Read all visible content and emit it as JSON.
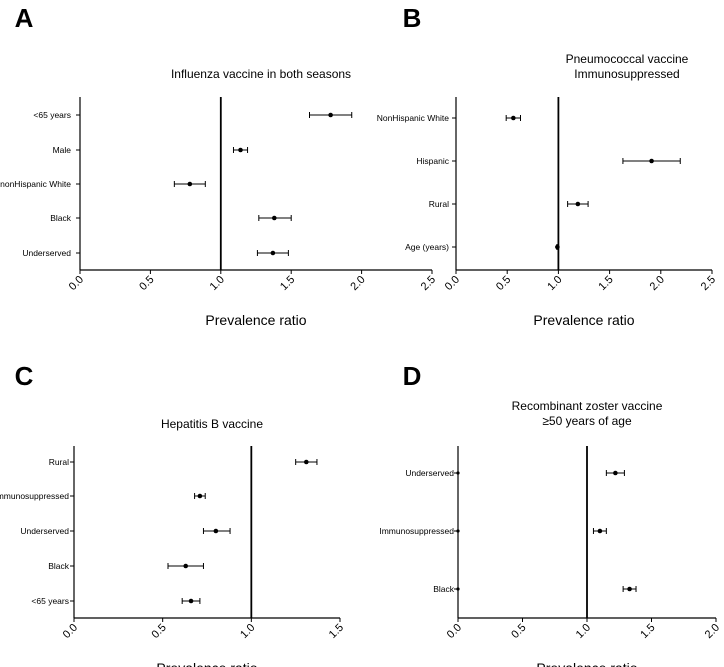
{
  "chart_data": [
    {
      "type": "forest",
      "panel": "A",
      "title": [
        "Influenza vaccine in both seasons"
      ],
      "xlabel": "Prevalence ratio",
      "xlim": [
        0,
        2.5
      ],
      "xticks": [
        "0.0",
        "0.5",
        "1.0",
        "1.5",
        "2.0",
        "2.5"
      ],
      "reference_line": 1.0,
      "rows": [
        {
          "label": "<65 years",
          "estimate": 1.78,
          "lower": 1.63,
          "upper": 1.93
        },
        {
          "label": "Male",
          "estimate": 1.14,
          "lower": 1.09,
          "upper": 1.19
        },
        {
          "label": "nonHispanic White",
          "estimate": 0.78,
          "lower": 0.67,
          "upper": 0.89
        },
        {
          "label": "Black",
          "estimate": 1.38,
          "lower": 1.27,
          "upper": 1.5
        },
        {
          "label": "Underserved",
          "estimate": 1.37,
          "lower": 1.26,
          "upper": 1.48
        }
      ]
    },
    {
      "type": "forest",
      "panel": "B",
      "title": [
        "Pneumococcal vaccine",
        "Immunosuppressed"
      ],
      "xlabel": "Prevalence ratio",
      "xlim": [
        0,
        2.5
      ],
      "xticks": [
        "0.0",
        "0.5",
        "1.0",
        "1.5",
        "2.0",
        "2.5"
      ],
      "reference_line": 1.0,
      "rows": [
        {
          "label": "NonHispanic White",
          "estimate": 0.56,
          "lower": 0.49,
          "upper": 0.63
        },
        {
          "label": "Hispanic",
          "estimate": 1.91,
          "lower": 1.63,
          "upper": 2.19
        },
        {
          "label": "Rural",
          "estimate": 1.19,
          "lower": 1.09,
          "upper": 1.29
        },
        {
          "label": "Age (years)",
          "estimate": 0.99,
          "lower": 0.985,
          "upper": 0.995
        }
      ]
    },
    {
      "type": "forest",
      "panel": "C",
      "title": [
        "Hepatitis B vaccine"
      ],
      "xlabel": "Prevalence ratio",
      "xlim": [
        0,
        1.5
      ],
      "xticks": [
        "0.0",
        "0.5",
        "1.0",
        "1.5"
      ],
      "reference_line": 1.0,
      "rows": [
        {
          "label": "Rural",
          "estimate": 1.31,
          "lower": 1.25,
          "upper": 1.37
        },
        {
          "label": "Immunosuppressed",
          "estimate": 0.71,
          "lower": 0.68,
          "upper": 0.74
        },
        {
          "label": "Underserved",
          "estimate": 0.8,
          "lower": 0.73,
          "upper": 0.88
        },
        {
          "label": "Black",
          "estimate": 0.63,
          "lower": 0.53,
          "upper": 0.73
        },
        {
          "label": "<65 years",
          "estimate": 0.66,
          "lower": 0.61,
          "upper": 0.71
        }
      ]
    },
    {
      "type": "forest",
      "panel": "D",
      "title": [
        "Recombinant zoster vaccine",
        "≥50 years of age"
      ],
      "xlabel": "Prevalence ratio",
      "xlim": [
        0,
        2.0
      ],
      "xticks": [
        "0.0",
        "0.5",
        "1.0",
        "1.5",
        "2.0"
      ],
      "reference_line": 1.0,
      "rows": [
        {
          "label": "Underserved",
          "estimate": 1.22,
          "lower": 1.15,
          "upper": 1.29
        },
        {
          "label": "Immunosuppressed",
          "estimate": 1.1,
          "lower": 1.05,
          "upper": 1.15
        },
        {
          "label": "Black",
          "estimate": 1.33,
          "lower": 1.28,
          "upper": 1.38
        }
      ]
    }
  ]
}
